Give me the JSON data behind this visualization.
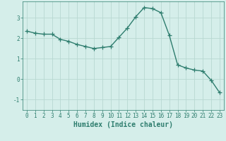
{
  "x": [
    0,
    1,
    2,
    3,
    4,
    5,
    6,
    7,
    8,
    9,
    10,
    11,
    12,
    13,
    14,
    15,
    16,
    17,
    18,
    19,
    20,
    21,
    22,
    23
  ],
  "y": [
    2.35,
    2.25,
    2.2,
    2.2,
    1.95,
    1.85,
    1.7,
    1.6,
    1.5,
    1.55,
    1.6,
    2.05,
    2.5,
    3.05,
    3.5,
    3.45,
    3.25,
    2.15,
    0.7,
    0.55,
    0.45,
    0.4,
    -0.05,
    -0.65
  ],
  "line_color": "#2e7d6e",
  "marker": "+",
  "marker_size": 4,
  "marker_linewidth": 0.9,
  "bg_color": "#d5eeea",
  "grid_color": "#b8d8d2",
  "axis_color": "#2e7d6e",
  "xlabel": "Humidex (Indice chaleur)",
  "xlabel_fontsize": 7,
  "ylim": [
    -1.5,
    3.8
  ],
  "yticks": [
    -1,
    0,
    1,
    2,
    3
  ],
  "xticks": [
    0,
    1,
    2,
    3,
    4,
    5,
    6,
    7,
    8,
    9,
    10,
    11,
    12,
    13,
    14,
    15,
    16,
    17,
    18,
    19,
    20,
    21,
    22,
    23
  ],
  "tick_fontsize": 5.5,
  "linewidth": 1.0
}
